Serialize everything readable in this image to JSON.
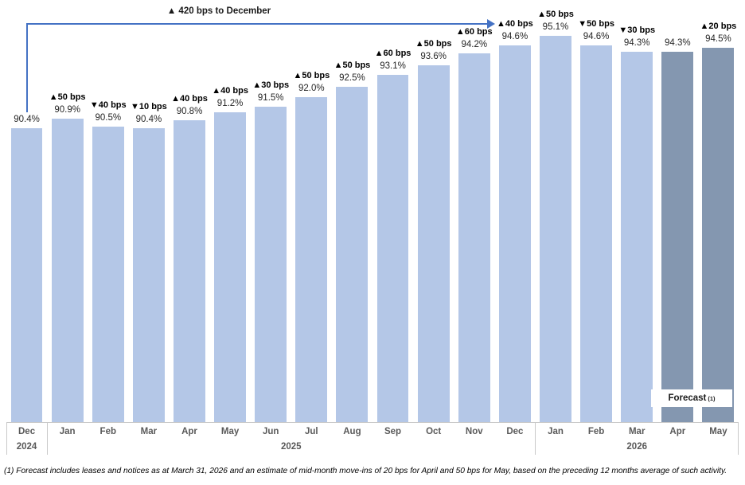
{
  "forecast_label": {
    "text": "Forecast",
    "sup": "(1)"
  },
  "footnote": "(1) Forecast includes leases and notices as at March 31, 2026 and an estimate of mid-month move-ins of 20 bps for April and 50 bps for May, based on the preceding 12 months average of such activity.",
  "colors": {
    "bar": "#b4c7e7",
    "bar_forecast": "#8497b0",
    "arrow": "#4472c4",
    "axis_line": "#c9c9c9",
    "month_label": "#595959",
    "value_label": "#262626",
    "bps_label": "#000000"
  },
  "chart_data": {
    "type": "bar",
    "annotation": "▲ 420 bps to December",
    "categories": [
      "Dec 2024",
      "Jan 2025",
      "Feb 2025",
      "Mar 2025",
      "Apr 2025",
      "May 2025",
      "Jun 2025",
      "Jul 2025",
      "Aug 2025",
      "Sep 2025",
      "Oct 2025",
      "Nov 2025",
      "Dec 2025",
      "Jan 2026",
      "Feb 2026",
      "Mar 2026",
      "Apr 2026",
      "May 2026"
    ],
    "values": [
      90.4,
      90.9,
      90.5,
      90.4,
      90.8,
      91.2,
      91.5,
      92.0,
      92.5,
      93.1,
      93.6,
      94.2,
      94.6,
      95.1,
      94.6,
      94.3,
      94.3,
      94.5
    ],
    "bars": [
      {
        "month": "Dec",
        "value": 90.4,
        "value_label": "90.4%",
        "bps_label": "",
        "forecast": false
      },
      {
        "month": "Jan",
        "value": 90.9,
        "value_label": "90.9%",
        "bps_label": "▲50 bps",
        "forecast": false
      },
      {
        "month": "Feb",
        "value": 90.5,
        "value_label": "90.5%",
        "bps_label": "▼40 bps",
        "forecast": false
      },
      {
        "month": "Mar",
        "value": 90.4,
        "value_label": "90.4%",
        "bps_label": "▼10 bps",
        "forecast": false
      },
      {
        "month": "Apr",
        "value": 90.8,
        "value_label": "90.8%",
        "bps_label": "▲40 bps",
        "forecast": false
      },
      {
        "month": "May",
        "value": 91.2,
        "value_label": "91.2%",
        "bps_label": "▲40 bps",
        "forecast": false
      },
      {
        "month": "Jun",
        "value": 91.5,
        "value_label": "91.5%",
        "bps_label": "▲30 bps",
        "forecast": false
      },
      {
        "month": "Jul",
        "value": 92.0,
        "value_label": "92.0%",
        "bps_label": "▲50 bps",
        "forecast": false
      },
      {
        "month": "Aug",
        "value": 92.5,
        "value_label": "92.5%",
        "bps_label": "▲50 bps",
        "forecast": false
      },
      {
        "month": "Sep",
        "value": 93.1,
        "value_label": "93.1%",
        "bps_label": "▲60 bps",
        "forecast": false
      },
      {
        "month": "Oct",
        "value": 93.6,
        "value_label": "93.6%",
        "bps_label": "▲50 bps",
        "forecast": false
      },
      {
        "month": "Nov",
        "value": 94.2,
        "value_label": "94.2%",
        "bps_label": "▲60 bps",
        "forecast": false
      },
      {
        "month": "Dec",
        "value": 94.6,
        "value_label": "94.6%",
        "bps_label": "▲40 bps",
        "forecast": false
      },
      {
        "month": "Jan",
        "value": 95.1,
        "value_label": "95.1%",
        "bps_label": "▲50 bps",
        "forecast": false
      },
      {
        "month": "Feb",
        "value": 94.6,
        "value_label": "94.6%",
        "bps_label": "▼50 bps",
        "forecast": false
      },
      {
        "month": "Mar",
        "value": 94.3,
        "value_label": "94.3%",
        "bps_label": "▼30 bps",
        "forecast": false
      },
      {
        "month": "Apr",
        "value": 94.3,
        "value_label": "94.3%",
        "bps_label": "",
        "forecast": true
      },
      {
        "month": "May",
        "value": 94.5,
        "value_label": "94.5%",
        "bps_label": "▲20 bps",
        "forecast": true
      }
    ],
    "year_groups": [
      {
        "label": "2024",
        "count": 1
      },
      {
        "label": "2025",
        "count": 12
      },
      {
        "label": "2026",
        "count": 5
      }
    ],
    "legend": false,
    "gridlines": false,
    "value_axis": "hidden",
    "ylim": [
      90.0,
      95.5
    ]
  }
}
